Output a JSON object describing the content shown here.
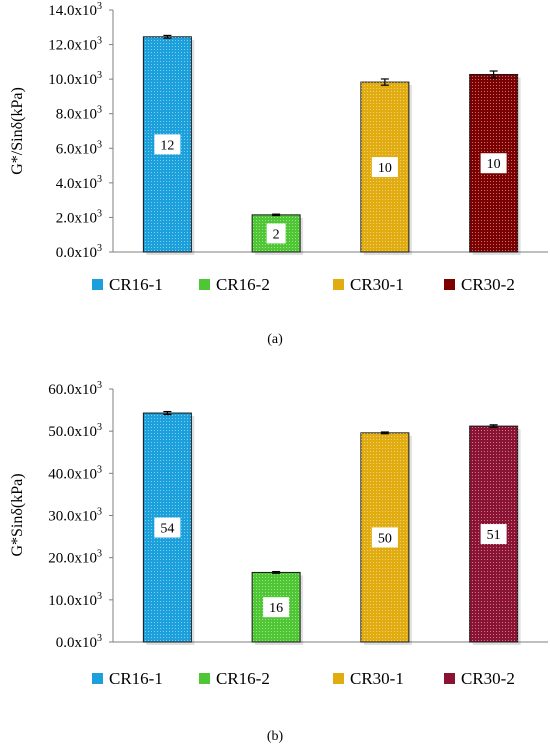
{
  "chart_data": [
    {
      "type": "bar",
      "caption": "(a)",
      "ylabel": "G*/Sinδ(kPa)",
      "ylim": [
        0,
        14000
      ],
      "tick_step": 2000,
      "tick_labels": [
        "0.0x10",
        "2.0x10",
        "4.0x10",
        "6.0x10",
        "8.0x10",
        "10.0x10",
        "12.0x10",
        "14.0x10"
      ],
      "tick_exponent": "3",
      "categories": [
        "CR16-1",
        "CR16-2",
        "CR30-1",
        "CR30-2"
      ],
      "values": [
        12450,
        2150,
        9830,
        10270
      ],
      "errors": [
        80,
        40,
        180,
        200
      ],
      "data_labels": [
        "12",
        "2",
        "10",
        "10"
      ],
      "colors": [
        "#1ca0dc",
        "#4fc634",
        "#e0ac10",
        "#7c0000"
      ],
      "legend": [
        "CR16-1",
        "CR16-2",
        "CR30-1",
        "CR30-2"
      ],
      "legend_position": "bottom",
      "grid": false
    },
    {
      "type": "bar",
      "caption": "(b)",
      "ylabel": "G*Sinδ(kPa)",
      "ylim": [
        0,
        60000
      ],
      "tick_step": 10000,
      "tick_labels": [
        "0.0x10",
        "10.0x10",
        "20.0x10",
        "30.0x10",
        "40.0x10",
        "50.0x10",
        "60.0x10"
      ],
      "tick_exponent": "3",
      "categories": [
        "CR16-1",
        "CR16-2",
        "CR30-1",
        "CR30-2"
      ],
      "values": [
        54300,
        16500,
        49600,
        51200
      ],
      "errors": [
        350,
        200,
        200,
        300
      ],
      "data_labels": [
        "54",
        "16",
        "50",
        "51"
      ],
      "colors": [
        "#1ca0dc",
        "#4fc634",
        "#e0ac10",
        "#8a1232"
      ],
      "legend": [
        "CR16-1",
        "CR16-2",
        "CR30-1",
        "CR30-2"
      ],
      "legend_position": "bottom",
      "grid": false
    }
  ]
}
